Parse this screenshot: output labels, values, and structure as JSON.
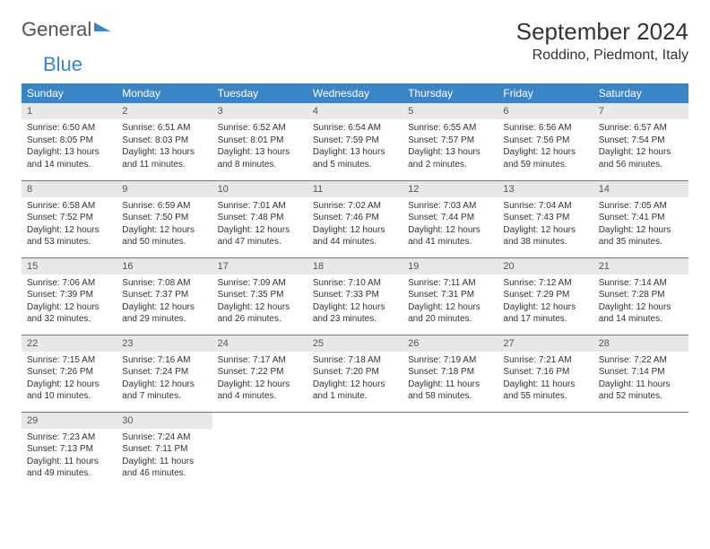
{
  "logo": {
    "text1": "General",
    "text2": "Blue"
  },
  "title": "September 2024",
  "location": "Roddino, Piedmont, Italy",
  "colors": {
    "header_bg": "#3a85c6",
    "header_text": "#ffffff",
    "daynum_bg": "#e8e8e8",
    "border": "#3a85c6"
  },
  "dayNames": [
    "Sunday",
    "Monday",
    "Tuesday",
    "Wednesday",
    "Thursday",
    "Friday",
    "Saturday"
  ],
  "weeks": [
    [
      {
        "n": "1",
        "sr": "6:50 AM",
        "ss": "8:05 PM",
        "dl": "13 hours and 14 minutes."
      },
      {
        "n": "2",
        "sr": "6:51 AM",
        "ss": "8:03 PM",
        "dl": "13 hours and 11 minutes."
      },
      {
        "n": "3",
        "sr": "6:52 AM",
        "ss": "8:01 PM",
        "dl": "13 hours and 8 minutes."
      },
      {
        "n": "4",
        "sr": "6:54 AM",
        "ss": "7:59 PM",
        "dl": "13 hours and 5 minutes."
      },
      {
        "n": "5",
        "sr": "6:55 AM",
        "ss": "7:57 PM",
        "dl": "13 hours and 2 minutes."
      },
      {
        "n": "6",
        "sr": "6:56 AM",
        "ss": "7:56 PM",
        "dl": "12 hours and 59 minutes."
      },
      {
        "n": "7",
        "sr": "6:57 AM",
        "ss": "7:54 PM",
        "dl": "12 hours and 56 minutes."
      }
    ],
    [
      {
        "n": "8",
        "sr": "6:58 AM",
        "ss": "7:52 PM",
        "dl": "12 hours and 53 minutes."
      },
      {
        "n": "9",
        "sr": "6:59 AM",
        "ss": "7:50 PM",
        "dl": "12 hours and 50 minutes."
      },
      {
        "n": "10",
        "sr": "7:01 AM",
        "ss": "7:48 PM",
        "dl": "12 hours and 47 minutes."
      },
      {
        "n": "11",
        "sr": "7:02 AM",
        "ss": "7:46 PM",
        "dl": "12 hours and 44 minutes."
      },
      {
        "n": "12",
        "sr": "7:03 AM",
        "ss": "7:44 PM",
        "dl": "12 hours and 41 minutes."
      },
      {
        "n": "13",
        "sr": "7:04 AM",
        "ss": "7:43 PM",
        "dl": "12 hours and 38 minutes."
      },
      {
        "n": "14",
        "sr": "7:05 AM",
        "ss": "7:41 PM",
        "dl": "12 hours and 35 minutes."
      }
    ],
    [
      {
        "n": "15",
        "sr": "7:06 AM",
        "ss": "7:39 PM",
        "dl": "12 hours and 32 minutes."
      },
      {
        "n": "16",
        "sr": "7:08 AM",
        "ss": "7:37 PM",
        "dl": "12 hours and 29 minutes."
      },
      {
        "n": "17",
        "sr": "7:09 AM",
        "ss": "7:35 PM",
        "dl": "12 hours and 26 minutes."
      },
      {
        "n": "18",
        "sr": "7:10 AM",
        "ss": "7:33 PM",
        "dl": "12 hours and 23 minutes."
      },
      {
        "n": "19",
        "sr": "7:11 AM",
        "ss": "7:31 PM",
        "dl": "12 hours and 20 minutes."
      },
      {
        "n": "20",
        "sr": "7:12 AM",
        "ss": "7:29 PM",
        "dl": "12 hours and 17 minutes."
      },
      {
        "n": "21",
        "sr": "7:14 AM",
        "ss": "7:28 PM",
        "dl": "12 hours and 14 minutes."
      }
    ],
    [
      {
        "n": "22",
        "sr": "7:15 AM",
        "ss": "7:26 PM",
        "dl": "12 hours and 10 minutes."
      },
      {
        "n": "23",
        "sr": "7:16 AM",
        "ss": "7:24 PM",
        "dl": "12 hours and 7 minutes."
      },
      {
        "n": "24",
        "sr": "7:17 AM",
        "ss": "7:22 PM",
        "dl": "12 hours and 4 minutes."
      },
      {
        "n": "25",
        "sr": "7:18 AM",
        "ss": "7:20 PM",
        "dl": "12 hours and 1 minute."
      },
      {
        "n": "26",
        "sr": "7:19 AM",
        "ss": "7:18 PM",
        "dl": "11 hours and 58 minutes."
      },
      {
        "n": "27",
        "sr": "7:21 AM",
        "ss": "7:16 PM",
        "dl": "11 hours and 55 minutes."
      },
      {
        "n": "28",
        "sr": "7:22 AM",
        "ss": "7:14 PM",
        "dl": "11 hours and 52 minutes."
      }
    ],
    [
      {
        "n": "29",
        "sr": "7:23 AM",
        "ss": "7:13 PM",
        "dl": "11 hours and 49 minutes."
      },
      {
        "n": "30",
        "sr": "7:24 AM",
        "ss": "7:11 PM",
        "dl": "11 hours and 46 minutes."
      },
      null,
      null,
      null,
      null,
      null
    ]
  ],
  "labels": {
    "sunrise": "Sunrise:",
    "sunset": "Sunset:",
    "daylight": "Daylight:"
  }
}
